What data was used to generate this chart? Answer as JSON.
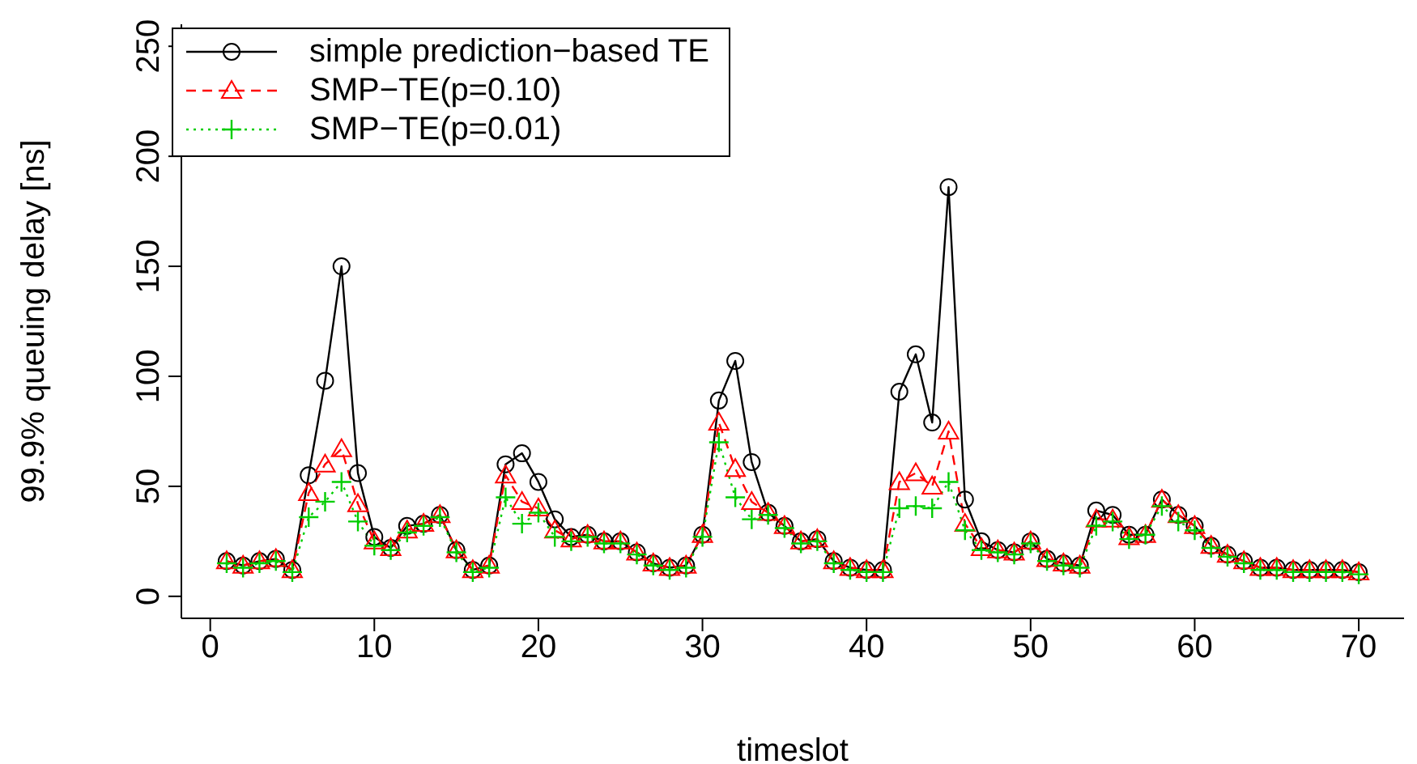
{
  "chart_data": {
    "type": "line",
    "xlabel": "timeslot",
    "ylabel": "99.9% queuing delay [ns]",
    "x": [
      1,
      2,
      3,
      4,
      5,
      6,
      7,
      8,
      9,
      10,
      11,
      12,
      13,
      14,
      15,
      16,
      17,
      18,
      19,
      20,
      21,
      22,
      23,
      24,
      25,
      26,
      27,
      28,
      29,
      30,
      31,
      32,
      33,
      34,
      35,
      36,
      37,
      38,
      39,
      40,
      41,
      42,
      43,
      44,
      45,
      46,
      47,
      48,
      49,
      50,
      51,
      52,
      53,
      54,
      55,
      56,
      57,
      58,
      59,
      60,
      61,
      62,
      63,
      64,
      65,
      66,
      67,
      68,
      69,
      70
    ],
    "series": [
      {
        "name": "simple prediction−based TE",
        "color": "#000000",
        "marker": "circle",
        "line_style": "solid",
        "values": [
          16,
          14,
          16,
          17,
          12,
          55,
          98,
          150,
          56,
          27,
          22,
          32,
          33,
          37,
          21,
          12,
          14,
          60,
          65,
          52,
          35,
          27,
          28,
          25,
          25,
          20,
          15,
          13,
          14,
          28,
          89,
          107,
          61,
          38,
          32,
          25,
          26,
          16,
          13,
          12,
          12,
          93,
          110,
          79,
          186,
          44,
          25,
          21,
          20,
          25,
          17,
          15,
          14,
          39,
          37,
          28,
          28,
          44,
          37,
          32,
          23,
          19,
          16,
          13,
          13,
          12,
          12,
          12,
          12,
          11
        ]
      },
      {
        "name": "SMP−TE(p=0.10)",
        "color": "#ff0000",
        "marker": "triangle",
        "line_style": "dashed",
        "values": [
          16,
          14,
          16,
          17,
          12,
          47,
          60,
          67,
          42,
          25,
          22,
          30,
          33,
          37,
          21,
          12,
          14,
          55,
          43,
          40,
          30,
          26,
          28,
          25,
          25,
          20,
          15,
          13,
          14,
          28,
          79,
          58,
          43,
          38,
          32,
          25,
          26,
          16,
          13,
          12,
          12,
          52,
          56,
          50,
          75,
          33,
          22,
          21,
          20,
          25,
          17,
          15,
          14,
          35,
          35,
          27,
          28,
          44,
          37,
          32,
          23,
          19,
          16,
          13,
          13,
          12,
          12,
          12,
          12,
          11
        ]
      },
      {
        "name": "SMP−TE(p=0.01)",
        "color": "#00cd00",
        "marker": "cross",
        "line_style": "dotted",
        "values": [
          15,
          13,
          15,
          16,
          11,
          36,
          43,
          52,
          34,
          23,
          21,
          29,
          32,
          36,
          20,
          11,
          13,
          45,
          33,
          38,
          27,
          25,
          27,
          24,
          24,
          19,
          14,
          12,
          13,
          27,
          70,
          45,
          35,
          37,
          31,
          24,
          25,
          15,
          12,
          11,
          11,
          40,
          41,
          40,
          52,
          30,
          21,
          20,
          19,
          24,
          16,
          14,
          13,
          32,
          34,
          26,
          28,
          41,
          34,
          30,
          22,
          18,
          15,
          12,
          12,
          11,
          11,
          11,
          11,
          10
        ]
      }
    ],
    "xlim": [
      -1.76,
      72.76
    ],
    "xticks": [
      0,
      10,
      20,
      30,
      40,
      50,
      60,
      70
    ],
    "ylim": [
      -10,
      260
    ],
    "yticks": [
      0,
      50,
      100,
      150,
      200,
      250
    ],
    "legend": "top left"
  }
}
